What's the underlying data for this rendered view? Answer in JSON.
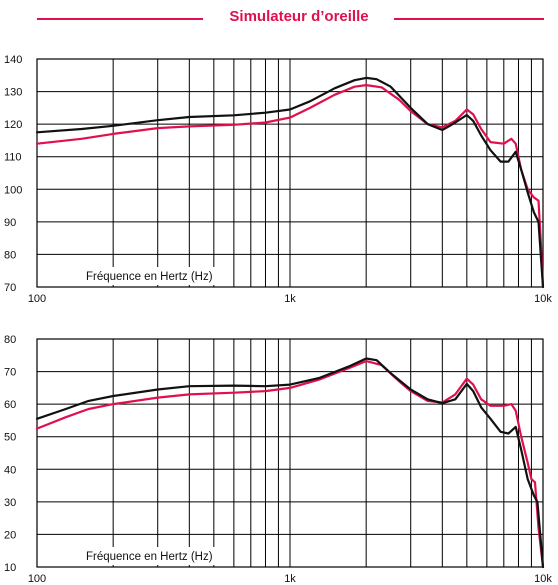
{
  "title": "Simulateur d’oreille",
  "colors": {
    "accent": "#e0104e",
    "series_a": "#e0104e",
    "series_b": "#111111",
    "grid": "#000000"
  },
  "chart_data": [
    {
      "type": "line",
      "xlabel": "Fréquence en Hertz (Hz)",
      "xscale": "log",
      "xlim": [
        100,
        10000
      ],
      "xticks": [
        {
          "value": 100,
          "label": "100"
        },
        {
          "value": 1000,
          "label": "1k"
        },
        {
          "value": 10000,
          "label": "10k"
        }
      ],
      "ylim": [
        70,
        140
      ],
      "yticks": [
        70,
        80,
        90,
        100,
        110,
        120,
        130,
        140
      ],
      "grid": true,
      "series": [
        {
          "color": "#e0104e",
          "points": [
            [
              100,
              114
            ],
            [
              150,
              115.5
            ],
            [
              200,
              117
            ],
            [
              300,
              118.8
            ],
            [
              400,
              119.3
            ],
            [
              600,
              119.8
            ],
            [
              800,
              120.5
            ],
            [
              1000,
              122
            ],
            [
              1200,
              125
            ],
            [
              1500,
              129
            ],
            [
              1800,
              131.5
            ],
            [
              2000,
              132
            ],
            [
              2300,
              131.3
            ],
            [
              2700,
              127.5
            ],
            [
              3000,
              124
            ],
            [
              3500,
              120
            ],
            [
              4000,
              119
            ],
            [
              4500,
              121
            ],
            [
              5000,
              124.5
            ],
            [
              5300,
              123
            ],
            [
              5700,
              118.5
            ],
            [
              6200,
              114.5
            ],
            [
              7000,
              114
            ],
            [
              7500,
              115.5
            ],
            [
              7800,
              114
            ],
            [
              8200,
              106
            ],
            [
              8700,
              100
            ],
            [
              9200,
              97.5
            ],
            [
              9600,
              96.5
            ],
            [
              9800,
              84
            ],
            [
              10000,
              70
            ]
          ]
        },
        {
          "color": "#111111",
          "points": [
            [
              100,
              117.5
            ],
            [
              150,
              118.5
            ],
            [
              200,
              119.5
            ],
            [
              300,
              121.2
            ],
            [
              400,
              122.2
            ],
            [
              600,
              122.7
            ],
            [
              800,
              123.5
            ],
            [
              1000,
              124.5
            ],
            [
              1200,
              127
            ],
            [
              1500,
              131
            ],
            [
              1800,
              133.5
            ],
            [
              2000,
              134.2
            ],
            [
              2200,
              133.8
            ],
            [
              2500,
              131.5
            ],
            [
              3000,
              125
            ],
            [
              3500,
              120
            ],
            [
              4000,
              118.2
            ],
            [
              4400,
              120
            ],
            [
              5000,
              122.8
            ],
            [
              5300,
              121
            ],
            [
              5700,
              116.5
            ],
            [
              6200,
              112
            ],
            [
              6800,
              108.5
            ],
            [
              7300,
              108.5
            ],
            [
              7800,
              111.5
            ],
            [
              8200,
              106
            ],
            [
              8700,
              99
            ],
            [
              9200,
              93
            ],
            [
              9600,
              90
            ],
            [
              10000,
              70
            ]
          ]
        }
      ]
    },
    {
      "type": "line",
      "xlabel": "Fréquence en Hertz (Hz)",
      "xscale": "log",
      "xlim": [
        100,
        10000
      ],
      "xticks": [
        {
          "value": 100,
          "label": "100"
        },
        {
          "value": 1000,
          "label": "1k"
        },
        {
          "value": 10000,
          "label": "10k"
        }
      ],
      "ylim": [
        10,
        80
      ],
      "yticks": [
        10,
        20,
        30,
        40,
        50,
        60,
        70,
        80
      ],
      "grid": true,
      "series": [
        {
          "color": "#e0104e",
          "points": [
            [
              100,
              52.5
            ],
            [
              130,
              56
            ],
            [
              160,
              58.5
            ],
            [
              200,
              60
            ],
            [
              300,
              62
            ],
            [
              400,
              63
            ],
            [
              600,
              63.5
            ],
            [
              800,
              64
            ],
            [
              1000,
              65
            ],
            [
              1300,
              67.5
            ],
            [
              1700,
              71
            ],
            [
              2000,
              73.2
            ],
            [
              2300,
              72
            ],
            [
              2700,
              67
            ],
            [
              3000,
              64
            ],
            [
              3500,
              61
            ],
            [
              4000,
              60.5
            ],
            [
              4500,
              63
            ],
            [
              5000,
              67.8
            ],
            [
              5300,
              66
            ],
            [
              5700,
              61.5
            ],
            [
              6200,
              59.5
            ],
            [
              7000,
              59.5
            ],
            [
              7500,
              60
            ],
            [
              7800,
              58
            ],
            [
              8200,
              50
            ],
            [
              8700,
              42
            ],
            [
              9000,
              37
            ],
            [
              9300,
              36
            ],
            [
              9600,
              22
            ],
            [
              10000,
              10
            ]
          ]
        },
        {
          "color": "#111111",
          "points": [
            [
              100,
              55.5
            ],
            [
              130,
              58.5
            ],
            [
              160,
              61
            ],
            [
              200,
              62.5
            ],
            [
              300,
              64.5
            ],
            [
              400,
              65.5
            ],
            [
              600,
              65.7
            ],
            [
              800,
              65.5
            ],
            [
              1000,
              66
            ],
            [
              1300,
              68
            ],
            [
              1700,
              71.5
            ],
            [
              2000,
              74
            ],
            [
              2200,
              73.5
            ],
            [
              2500,
              69.5
            ],
            [
              3000,
              64.5
            ],
            [
              3500,
              61.5
            ],
            [
              4000,
              60.3
            ],
            [
              4500,
              61.5
            ],
            [
              5000,
              66.2
            ],
            [
              5300,
              64
            ],
            [
              5700,
              59
            ],
            [
              6200,
              55.5
            ],
            [
              6800,
              51.5
            ],
            [
              7300,
              51
            ],
            [
              7800,
              53
            ],
            [
              8200,
              46
            ],
            [
              8700,
              37
            ],
            [
              9200,
              32
            ],
            [
              9500,
              30
            ],
            [
              9800,
              18
            ],
            [
              10000,
              10
            ]
          ]
        }
      ]
    }
  ]
}
